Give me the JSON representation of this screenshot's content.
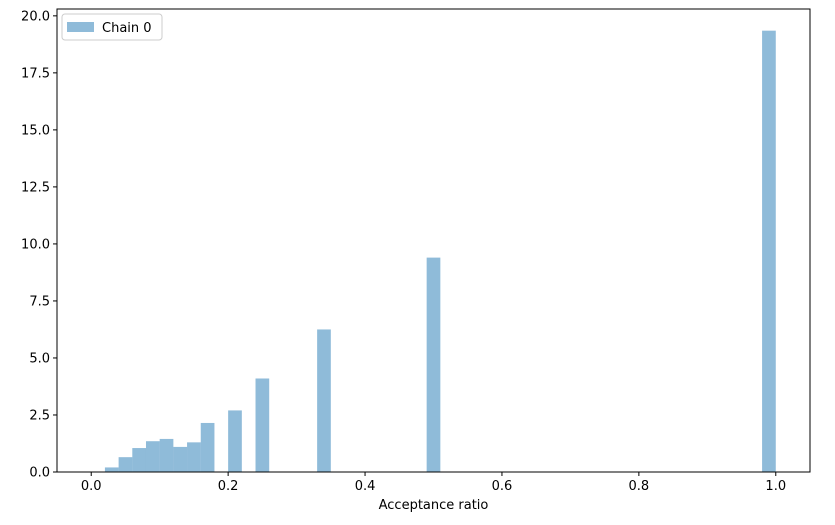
{
  "chart_data": {
    "type": "bar",
    "title": "",
    "xlabel": "Acceptance ratio",
    "ylabel": "",
    "xlim": [
      -0.05,
      1.05
    ],
    "ylim": [
      0,
      20.3
    ],
    "bin_width": 0.02,
    "xticks": [
      0.0,
      0.2,
      0.4,
      0.6,
      0.8,
      1.0
    ],
    "xtick_labels": [
      "0.0",
      "0.2",
      "0.4",
      "0.6",
      "0.8",
      "1.0"
    ],
    "yticks": [
      0.0,
      2.5,
      5.0,
      7.5,
      10.0,
      12.5,
      15.0,
      17.5,
      20.0
    ],
    "ytick_labels": [
      "0.0",
      "2.5",
      "5.0",
      "7.5",
      "10.0",
      "12.5",
      "15.0",
      "17.5",
      "20.0"
    ],
    "grid": false,
    "legend": {
      "position": "top-left",
      "entries": [
        "Chain 0"
      ]
    },
    "series": [
      {
        "name": "Chain 0",
        "color": "#1f77b4",
        "alpha": 0.5,
        "bars": [
          {
            "x0": 0.02,
            "x1": 0.04,
            "value": 0.2
          },
          {
            "x0": 0.04,
            "x1": 0.06,
            "value": 0.65
          },
          {
            "x0": 0.06,
            "x1": 0.08,
            "value": 1.05
          },
          {
            "x0": 0.08,
            "x1": 0.1,
            "value": 1.35
          },
          {
            "x0": 0.1,
            "x1": 0.12,
            "value": 1.45
          },
          {
            "x0": 0.12,
            "x1": 0.14,
            "value": 1.1
          },
          {
            "x0": 0.14,
            "x1": 0.16,
            "value": 1.3
          },
          {
            "x0": 0.16,
            "x1": 0.18,
            "value": 2.15
          },
          {
            "x0": 0.2,
            "x1": 0.22,
            "value": 2.7
          },
          {
            "x0": 0.24,
            "x1": 0.26,
            "value": 4.1
          },
          {
            "x0": 0.33,
            "x1": 0.35,
            "value": 6.25
          },
          {
            "x0": 0.49,
            "x1": 0.51,
            "value": 9.4
          },
          {
            "x0": 0.98,
            "x1": 1.0,
            "value": 19.35
          }
        ]
      }
    ]
  }
}
